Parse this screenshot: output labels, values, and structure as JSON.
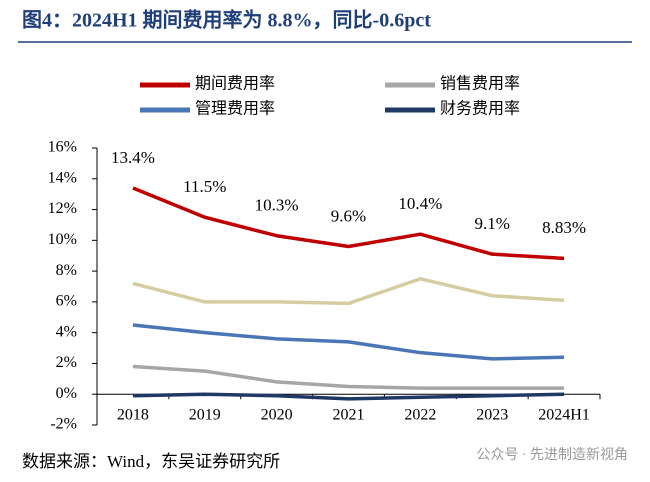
{
  "chart_data": {
    "type": "line",
    "title": "图4：2024H1 期间费用率为 8.8%，同比-0.6pct",
    "categories": [
      "2018",
      "2019",
      "2020",
      "2021",
      "2022",
      "2023",
      "2024H1"
    ],
    "series": [
      {
        "name": "期间费用率",
        "color": "#c00000",
        "values": [
          13.4,
          11.5,
          10.3,
          9.6,
          10.4,
          9.1,
          8.83
        ],
        "value_labels": [
          "13.4%",
          "11.5%",
          "10.3%",
          "9.6%",
          "10.4%",
          "9.1%",
          "8.83%"
        ]
      },
      {
        "name": "销售费用率",
        "color": "#a6a6a6",
        "values": [
          1.8,
          1.5,
          0.8,
          0.5,
          0.4,
          0.4,
          0.4
        ]
      },
      {
        "name": "管理费用率",
        "color": "#4a76b5",
        "values": [
          4.5,
          4.0,
          3.6,
          3.4,
          2.7,
          2.3,
          2.4
        ]
      },
      {
        "name": "财务费用率",
        "color": "#1f3864",
        "values": [
          -0.1,
          0.0,
          -0.1,
          -0.3,
          -0.2,
          -0.1,
          0.0
        ]
      },
      {
        "color": "#d6cca2",
        "values": [
          7.2,
          6.0,
          6.0,
          5.9,
          7.5,
          6.4,
          6.1
        ]
      }
    ],
    "ylim": [
      -2,
      16
    ],
    "yticks": [
      {
        "value": -2,
        "label": "-2%"
      },
      {
        "value": 0,
        "label": "0%"
      },
      {
        "value": 2,
        "label": "2%"
      },
      {
        "value": 4,
        "label": "4%"
      },
      {
        "value": 6,
        "label": "6%"
      },
      {
        "value": 8,
        "label": "8%"
      },
      {
        "value": 10,
        "label": "10%"
      },
      {
        "value": 12,
        "label": "12%"
      },
      {
        "value": 14,
        "label": "14%"
      },
      {
        "value": 16,
        "label": "16%"
      }
    ],
    "grid": false,
    "source": "数据来源：Wind，东吴证券研究所",
    "watermark": "公众号 · 先进制造新视角"
  }
}
